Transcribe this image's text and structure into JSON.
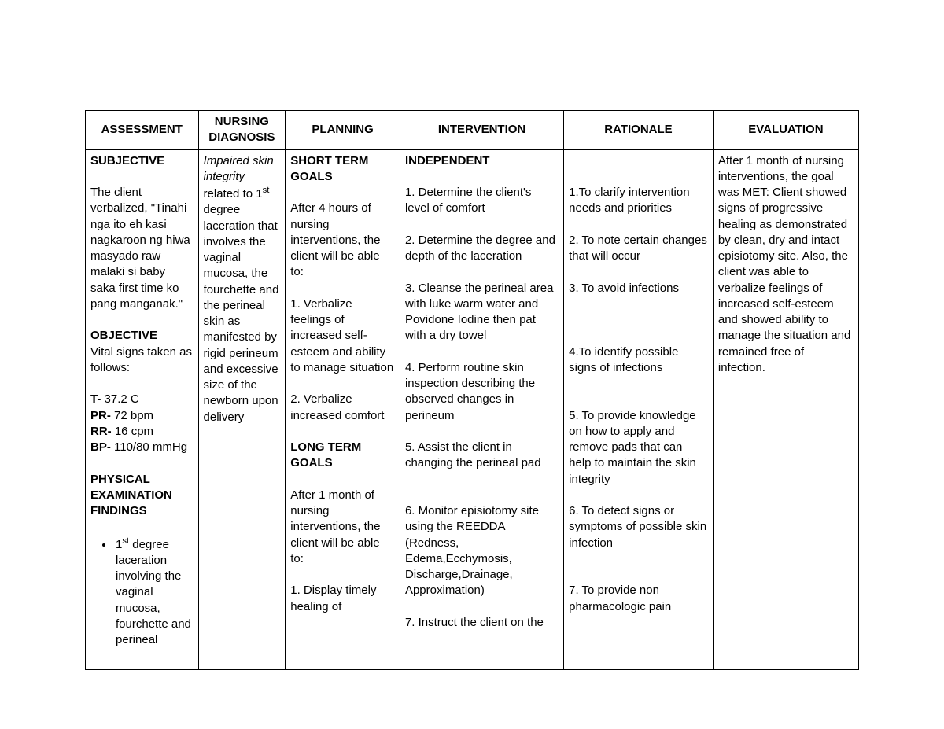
{
  "headers": {
    "assessment": "ASSESSMENT",
    "diagnosis": "NURSING DIAGNOSIS",
    "planning": "PLANNING",
    "intervention": "INTERVENTION",
    "rationale": "RATIONALE",
    "evaluation": "EVALUATION"
  },
  "assessment": {
    "subjective_label": "SUBJECTIVE",
    "subjective_text": "The client verbalized, \"Tinahi nga ito eh kasi nagkaroon ng hiwa masyado raw malaki si baby saka first time ko pang manganak.\"",
    "objective_label": "OBJECTIVE",
    "objective_intro": "Vital signs taken as follows:",
    "vitals": {
      "t_label": "T-",
      "t_value": " 37.2 C",
      "pr_label": "PR-",
      "pr_value": " 72 bpm",
      "rr_label": "RR-",
      "rr_value": " 16 cpm",
      "bp_label": "BP-",
      "bp_value": " 110/80 mmHg"
    },
    "phys_label": "PHYSICAL EXAMINATION FINDINGS",
    "bullet1_pre": "1",
    "bullet1_post": " degree laceration involving the vaginal mucosa, fourchette and perineal"
  },
  "diagnosis": {
    "emph": "Impaired skin integrity",
    "rest_pre": " related to 1",
    "rest_post": " degree laceration that involves the vaginal mucosa, the fourchette and the perineal skin as manifested by rigid perineum and excessive size of the newborn upon delivery"
  },
  "planning": {
    "st_label": "SHORT TERM GOALS",
    "st_intro": "After 4 hours of nursing interventions, the client will be able to:",
    "st1": "1. Verbalize feelings of increased self-esteem and ability to manage situation",
    "st2": "2. Verbalize increased comfort",
    "lt_label": "LONG TERM GOALS",
    "lt_intro": "After 1 month of nursing interventions, the client will be able to:",
    "lt1": "1. Display timely healing of"
  },
  "intervention": {
    "ind_label": "INDEPENDENT",
    "i1": "1. Determine the client's level of comfort",
    "i2": "2. Determine the degree and depth of the laceration",
    "i3": "3. Cleanse the perineal area with luke warm water and Povidone Iodine then pat with a dry towel",
    "i4": "4. Perform routine skin inspection describing the observed changes in perineum",
    "i5": "5. Assist the client in changing the perineal pad",
    "i6": "6. Monitor episiotomy site using the REEDDA (Redness, Edema,Ecchymosis, Discharge,Drainage, Approximation)",
    "i7": "7. Instruct the client on the"
  },
  "rationale": {
    "r1": "1.To clarify intervention needs and priorities",
    "r2": "2. To note certain changes that will occur",
    "r3": "3. To avoid infections",
    "r4": "4.To identify possible signs of infections",
    "r5": "5. To provide knowledge on how to apply and remove pads that can help to maintain the skin integrity",
    "r6": "6. To detect signs or symptoms of possible skin infection",
    "r7": "7. To provide non pharmacologic pain"
  },
  "evaluation": {
    "text": "After 1 month of nursing interventions, the goal was MET: Client showed signs of progressive healing as demonstrated by clean, dry and intact episiotomy site. Also, the client was able to verbalize feelings of increased self-esteem and showed ability to manage the situation and remained free of infection."
  }
}
